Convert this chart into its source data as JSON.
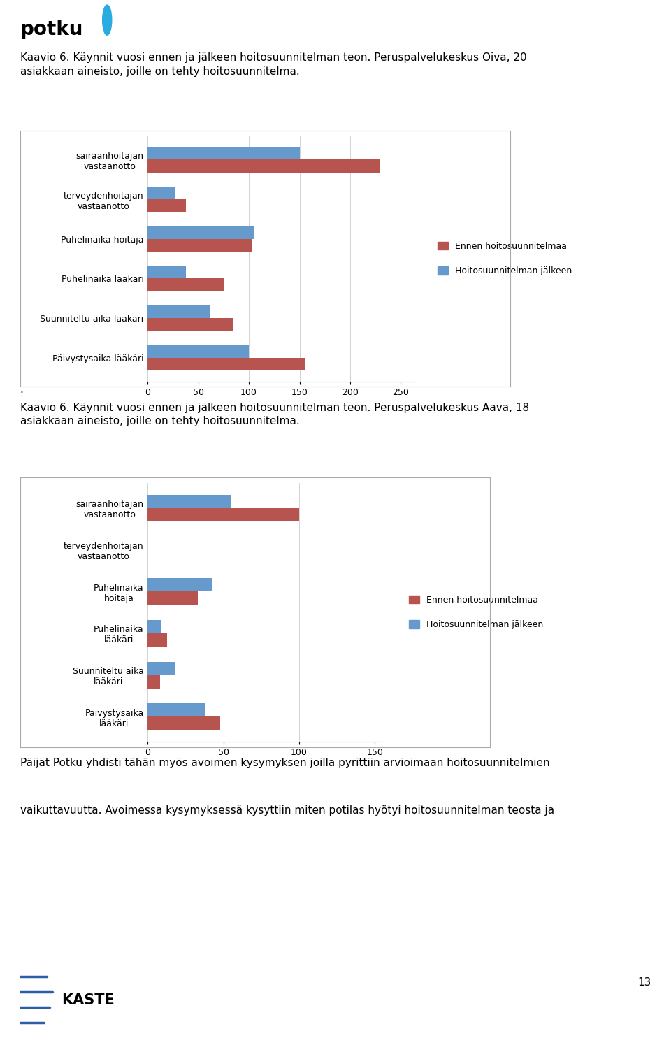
{
  "chart1": {
    "title": "Kaavio 6. Käynnit vuosi ennen ja jälkeen hoitosuunnitelman teon. Peruspalvelukeskus Oiva, 20\nasiakkaan aineisto, joille on tehty hoitosuunnitelma.",
    "categories": [
      "sairaanhoitajan\nvastaanotto",
      "terveydenhoitajan\nvastaanotto",
      "Puhelinaika hoitaja",
      "Puhelinaika lääkäri",
      "Suunniteltu aika lääkäri",
      "Päivystysaika lääkäri"
    ],
    "ennen": [
      230,
      38,
      103,
      75,
      85,
      155
    ],
    "jalkeen": [
      150,
      27,
      105,
      38,
      62,
      100
    ],
    "xlim": [
      0,
      265
    ],
    "xticks": [
      0,
      50,
      100,
      150,
      200,
      250
    ]
  },
  "chart2": {
    "title": "Kaavio 6. Käynnit vuosi ennen ja jälkeen hoitosuunnitelman teon. Peruspalvelukeskus Aava, 18\nasiakkaan aineisto, joille on tehty hoitosuunnitelma.",
    "categories": [
      "sairaanhoitajan\nvastaanotto",
      "terveydenhoitajan\nvastaanotto",
      "Puhelinaika\nhoitaja",
      "Puhelinaika\nlääkäri",
      "Suunniteltu aika\nlääkäri",
      "Päivystysaika\nlääkäri"
    ],
    "ennen": [
      100,
      0,
      33,
      13,
      8,
      48
    ],
    "jalkeen": [
      55,
      0,
      43,
      9,
      18,
      38
    ],
    "xlim": [
      0,
      155
    ],
    "xticks": [
      0,
      50,
      100,
      150
    ]
  },
  "legend_ennen": "Ennen hoitosuunnitelmaa",
  "legend_jalkeen": "Hoitosuunnitelman jälkeen",
  "color_ennen": "#B85450",
  "color_jalkeen": "#6699CC",
  "bottom_text1": "Päijät Potku yhdisti tähän myös avoimen kysymyksen joilla pyrittiin arvioimaan hoitosuunnitelmien",
  "bottom_text2": "vaikuttavuutta. Avoimessa kysymyksessä kysyttiin miten potilas hyötyi hoitosuunnitelman teosta ja",
  "page_number": "13",
  "bg_color": "#ffffff",
  "chart_bg": "#ffffff",
  "border_color": "#aaaaaa",
  "grid_color": "#cccccc",
  "text_color": "#000000",
  "font_size_title": 11,
  "font_size_label": 9,
  "font_size_tick": 9,
  "font_size_legend": 9,
  "font_size_bottom": 11,
  "bar_height": 0.32
}
